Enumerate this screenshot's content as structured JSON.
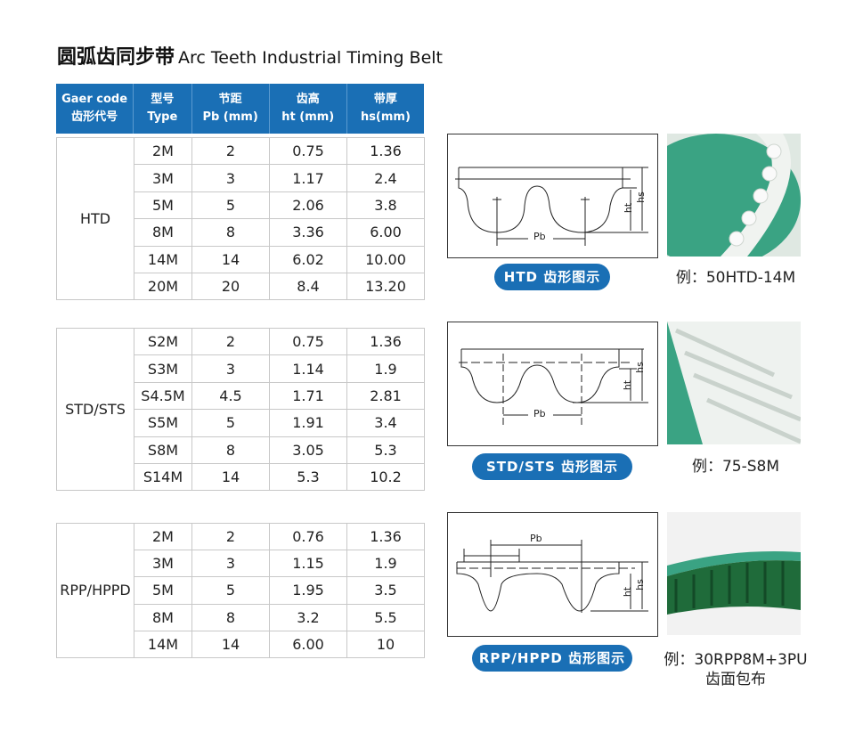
{
  "title": {
    "cn": "圆弧齿同步带",
    "en": "Arc Teeth Industrial Timing Belt"
  },
  "header": [
    {
      "l1": "Gaer code",
      "l2": "齿形代号"
    },
    {
      "l1": "型号",
      "l2": "Type"
    },
    {
      "l1": "节距",
      "l2": "Pb (mm)"
    },
    {
      "l1": "齿高",
      "l2": "ht (mm)"
    },
    {
      "l1": "带厚",
      "l2": "hs(mm)"
    }
  ],
  "groups": [
    {
      "code": "HTD",
      "rows": [
        [
          "2M",
          "2",
          "0.75",
          "1.36"
        ],
        [
          "3M",
          "3",
          "1.17",
          "2.4"
        ],
        [
          "5M",
          "5",
          "2.06",
          "3.8"
        ],
        [
          "8M",
          "8",
          "3.36",
          "6.00"
        ],
        [
          "14M",
          "14",
          "6.02",
          "10.00"
        ],
        [
          "20M",
          "20",
          "8.4",
          "13.20"
        ]
      ],
      "pill": "HTD 齿形图示",
      "example": "例：50HTD-14M",
      "example2": ""
    },
    {
      "code": "STD/STS",
      "rows": [
        [
          "S2M",
          "2",
          "0.75",
          "1.36"
        ],
        [
          "S3M",
          "3",
          "1.14",
          "1.9"
        ],
        [
          "S4.5M",
          "4.5",
          "1.71",
          "2.81"
        ],
        [
          "S5M",
          "5",
          "1.91",
          "3.4"
        ],
        [
          "S8M",
          "8",
          "3.05",
          "5.3"
        ],
        [
          "S14M",
          "14",
          "5.3",
          "10.2"
        ]
      ],
      "pill": "STD/STS 齿形图示",
      "example": "例：75-S8M",
      "example2": ""
    },
    {
      "code": "RPP/HPPD",
      "rows": [
        [
          "2M",
          "2",
          "0.76",
          "1.36"
        ],
        [
          "3M",
          "3",
          "1.15",
          "1.9"
        ],
        [
          "5M",
          "5",
          "1.95",
          "3.5"
        ],
        [
          "8M",
          "8",
          "3.2",
          "5.5"
        ],
        [
          "14M",
          "14",
          "6.00",
          "10"
        ]
      ],
      "pill": "RPP/HPPD 齿形图示",
      "example": "例：30RPP8M+3PU",
      "example2": "齿面包布"
    }
  ],
  "diagram_labels": {
    "pb": "Pb",
    "ht": "ht",
    "hs": "hs"
  },
  "colors": {
    "header": "#1a6fb5",
    "photo_bg": "#3aa383",
    "belt": "#f0f3f0"
  }
}
